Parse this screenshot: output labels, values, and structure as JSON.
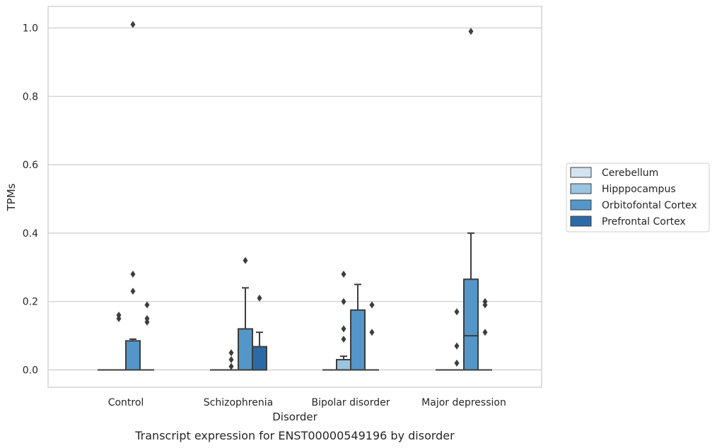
{
  "caption": "Transcript expression for ENST00000549196 by disorder",
  "chart_data": {
    "type": "box",
    "title": "",
    "xlabel": "Disorder",
    "ylabel": "TPMs",
    "ylim": [
      -0.05,
      1.06
    ],
    "yticks": [
      0.0,
      0.2,
      0.4,
      0.6,
      0.8,
      1.0
    ],
    "ytick_labels": [
      "0.0",
      "0.2",
      "0.4",
      "0.6",
      "0.8",
      "1.0"
    ],
    "grid": "horizontal",
    "legend_position": "right",
    "categories": [
      "Control",
      "Schizophrenia",
      "Bipolar disorder",
      "Major depression"
    ],
    "series": [
      {
        "name": "Cerebellum",
        "color": "#d4e3f1",
        "boxes": [
          {
            "q1": 0,
            "median": 0,
            "q3": 0,
            "whislo": 0,
            "whishi": 0,
            "fliers": []
          },
          {
            "q1": 0,
            "median": 0,
            "q3": 0,
            "whislo": 0,
            "whishi": 0,
            "fliers": []
          },
          {
            "q1": 0,
            "median": 0,
            "q3": 0,
            "whislo": 0,
            "whishi": 0,
            "fliers": []
          },
          {
            "q1": 0,
            "median": 0,
            "q3": 0,
            "whislo": 0,
            "whishi": 0,
            "fliers": []
          }
        ]
      },
      {
        "name": "Hipppocampus",
        "color": "#9ac4e0",
        "boxes": [
          {
            "q1": 0,
            "median": 0,
            "q3": 0,
            "whislo": 0,
            "whishi": 0,
            "fliers": [
              0.16,
              0.15
            ]
          },
          {
            "q1": 0,
            "median": 0,
            "q3": 0,
            "whislo": 0,
            "whishi": 0,
            "fliers": [
              0.05,
              0.03,
              0.01
            ]
          },
          {
            "q1": 0,
            "median": 0,
            "q3": 0.03,
            "whislo": 0,
            "whishi": 0.04,
            "fliers": [
              0.2,
              0.28,
              0.12,
              0.09
            ]
          },
          {
            "q1": 0,
            "median": 0,
            "q3": 0,
            "whislo": 0,
            "whishi": 0,
            "fliers": [
              0.17,
              0.07,
              0.02
            ]
          }
        ]
      },
      {
        "name": "Orbitofontal Cortex",
        "color": "#5496c8",
        "boxes": [
          {
            "q1": 0,
            "median": 0,
            "q3": 0.085,
            "whislo": 0,
            "whishi": 0.09,
            "fliers": [
              1.01,
              0.28,
              0.23
            ]
          },
          {
            "q1": 0,
            "median": 0,
            "q3": 0.12,
            "whislo": 0,
            "whishi": 0.24,
            "fliers": [
              0.32
            ]
          },
          {
            "q1": 0,
            "median": 0,
            "q3": 0.175,
            "whislo": 0,
            "whishi": 0.25,
            "fliers": []
          },
          {
            "q1": 0,
            "median": 0.1,
            "q3": 0.265,
            "whislo": 0,
            "whishi": 0.4,
            "fliers": [
              0.99
            ]
          }
        ]
      },
      {
        "name": "Prefrontal Cortex",
        "color": "#2b6aa6",
        "boxes": [
          {
            "q1": 0,
            "median": 0,
            "q3": 0,
            "whislo": 0,
            "whishi": 0,
            "fliers": [
              0.19,
              0.15,
              0.14
            ]
          },
          {
            "q1": 0,
            "median": 0,
            "q3": 0.068,
            "whislo": 0,
            "whishi": 0.11,
            "fliers": [
              0.21
            ]
          },
          {
            "q1": 0,
            "median": 0,
            "q3": 0,
            "whislo": 0,
            "whishi": 0,
            "fliers": [
              0.19,
              0.11
            ]
          },
          {
            "q1": 0,
            "median": 0,
            "q3": 0,
            "whislo": 0,
            "whishi": 0,
            "fliers": [
              0.2,
              0.19,
              0.11
            ]
          }
        ]
      }
    ]
  }
}
